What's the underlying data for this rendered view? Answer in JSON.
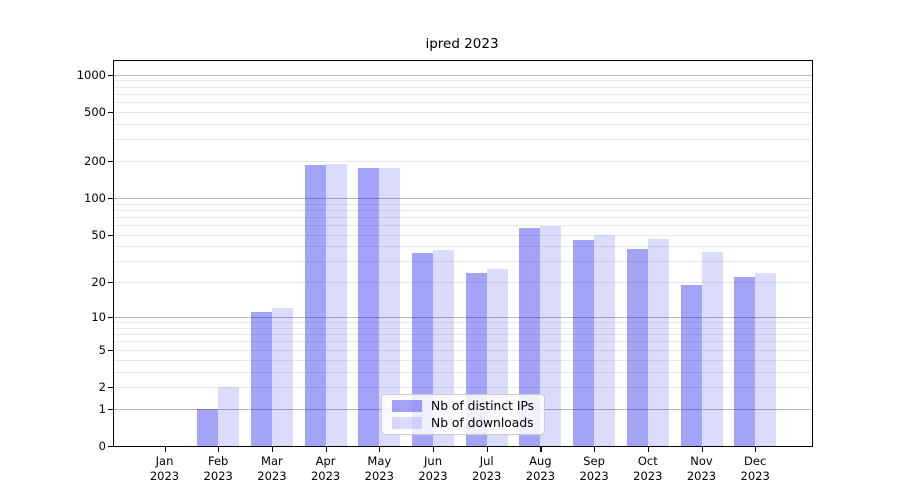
{
  "title": "ipred 2023",
  "colors": {
    "distinct_ips": "rgba(0,0,235,0.36)",
    "downloads": "rgba(0,0,235,0.14)",
    "grid_major": "#b8b8b8",
    "grid_minor": "#e9e9e9",
    "axis": "#000000",
    "legend_border": "#cccccc"
  },
  "legend": {
    "items": [
      {
        "label": "Nb of distinct IPs",
        "series": "distinct_ips"
      },
      {
        "label": "Nb of downloads",
        "series": "downloads"
      }
    ]
  },
  "chart_data": {
    "type": "bar",
    "title": "ipred 2023",
    "scale": "log1p (y position proportional to log10(value+1))",
    "categories": [
      "Jan 2023",
      "Feb 2023",
      "Mar 2023",
      "Apr 2023",
      "May 2023",
      "Jun 2023",
      "Jul 2023",
      "Aug 2023",
      "Sep 2023",
      "Oct 2023",
      "Nov 2023",
      "Dec 2023"
    ],
    "month_labels": [
      "Jan",
      "Feb",
      "Mar",
      "Apr",
      "May",
      "Jun",
      "Jul",
      "Aug",
      "Sep",
      "Oct",
      "Nov",
      "Dec"
    ],
    "year_label": "2023",
    "series": [
      {
        "name": "Nb of distinct IPs",
        "values": [
          0,
          1,
          11,
          185,
          175,
          35,
          24,
          57,
          45,
          38,
          19,
          22
        ]
      },
      {
        "name": "Nb of downloads",
        "values": [
          0,
          2,
          12,
          190,
          176,
          37,
          26,
          59,
          50,
          46,
          36,
          24
        ]
      }
    ],
    "y_ticks": [
      0,
      1,
      2,
      5,
      10,
      20,
      50,
      100,
      200,
      500,
      1000
    ],
    "ylim": [
      0,
      1260
    ],
    "xlabel": "",
    "ylabel": "",
    "grid": "horizontal, major (powers of 10) darker + minor lighter",
    "legend_position": "lower center"
  }
}
